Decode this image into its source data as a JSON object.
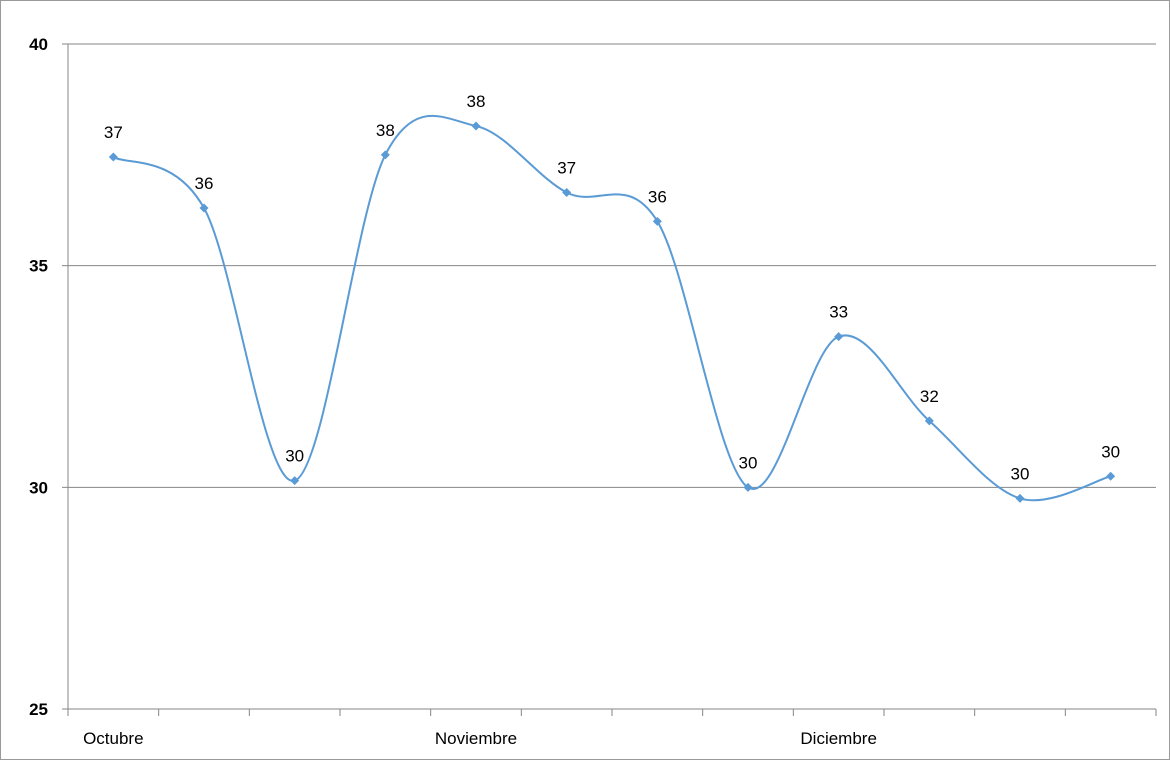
{
  "chart_data": {
    "type": "line",
    "title": "",
    "xlabel": "",
    "ylabel": "",
    "ylim": [
      25,
      40
    ],
    "yticks": [
      "25",
      "30",
      "35",
      "40"
    ],
    "grid": true,
    "legend": "none",
    "smooth": true,
    "colors": {
      "series": "#5b9bd5",
      "grid": "#868686",
      "axis": "#868686"
    },
    "category_labels": [
      "Octubre",
      "Noviembre",
      "Diciembre"
    ],
    "label_positions": [
      0,
      4,
      8
    ],
    "series": [
      {
        "values": [
          37.45,
          36.3,
          30.15,
          37.5,
          38.15,
          36.65,
          36.0,
          30.0,
          33.4,
          31.5,
          29.75,
          30.25
        ],
        "data_labels": [
          "37",
          "36",
          "30",
          "38",
          "38",
          "37",
          "36",
          "30",
          "33",
          "32",
          "30",
          "30"
        ]
      }
    ]
  }
}
